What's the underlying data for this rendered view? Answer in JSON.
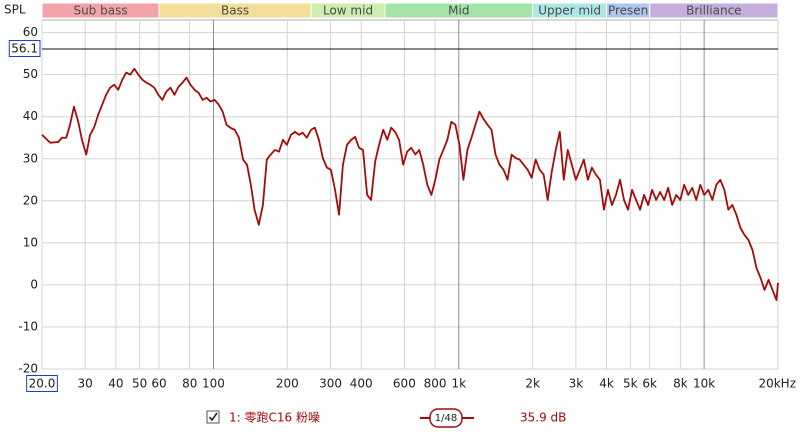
{
  "chart_data": {
    "type": "line",
    "ylabel": "SPL",
    "xscale": "log",
    "grid": true,
    "xlim": [
      20,
      20000
    ],
    "ylim": [
      -20,
      63
    ],
    "xticks": [
      {
        "value": 20,
        "label": "20.0"
      },
      30,
      40,
      50,
      60,
      80,
      100,
      200,
      300,
      400,
      600,
      800,
      {
        "value": 1000,
        "label": "1k"
      },
      {
        "value": 2000,
        "label": "2k"
      },
      {
        "value": 3000,
        "label": "3k"
      },
      {
        "value": 4000,
        "label": "4k"
      },
      {
        "value": 5000,
        "label": "5k"
      },
      {
        "value": 6000,
        "label": "6k"
      },
      {
        "value": 8000,
        "label": "8k"
      },
      {
        "value": 10000,
        "label": "10k"
      },
      {
        "value": 20000,
        "label": "20kHz"
      }
    ],
    "yticks": [
      -20,
      -10,
      0,
      10,
      20,
      30,
      40,
      50,
      60
    ],
    "cursor": 56.1,
    "bands": [
      {
        "label": "Sub bass",
        "start": 20,
        "end": 60,
        "color": "#f2a4ab"
      },
      {
        "label": "Bass",
        "start": 60,
        "end": 250,
        "color": "#f2e09a"
      },
      {
        "label": "Low mid",
        "start": 250,
        "end": 500,
        "color": "#cdeeb0"
      },
      {
        "label": "Mid",
        "start": 500,
        "end": 2000,
        "color": "#a6e3a8"
      },
      {
        "label": "Upper mid",
        "start": 2000,
        "end": 4000,
        "color": "#ade7e6"
      },
      {
        "label": "Presen",
        "start": 4000,
        "end": 6000,
        "color": "#b0c6ee"
      },
      {
        "label": "Brilliance",
        "start": 6000,
        "end": 20000,
        "color": "#c4aedc"
      }
    ],
    "x": [
      20,
      21.6,
      23.3,
      24.1,
      25.1,
      26.0,
      27.0,
      28.1,
      29.1,
      30.3,
      31.4,
      32.6,
      33.9,
      35.2,
      36.5,
      37.9,
      39.4,
      40.9,
      42.5,
      44.1,
      45.8,
      47.6,
      49.4,
      51.3,
      53.3,
      55.3,
      57.4,
      59.6,
      61.9,
      64.3,
      66.8,
      69.3,
      72.0,
      74.8,
      77.6,
      80.6,
      83.7,
      86.9,
      90.3,
      93.7,
      97.3,
      101,
      105,
      109,
      113,
      117,
      122,
      127,
      132,
      137,
      142,
      147,
      153,
      159,
      165,
      171,
      178,
      185,
      192,
      199,
      207,
      215,
      223,
      231,
      240,
      250,
      259,
      269,
      279,
      290,
      301,
      313,
      325,
      337,
      350,
      364,
      378,
      392,
      407,
      423,
      439,
      456,
      473,
      492,
      511,
      530,
      550,
      571,
      593,
      616,
      640,
      665,
      690,
      716,
      744,
      773,
      802,
      833,
      865,
      898,
      932,
      968,
      1006,
      1044,
      1084,
      1126,
      1169,
      1214,
      1260,
      1309,
      1359,
      1411,
      1465,
      1521,
      1580,
      1641,
      1704,
      1769,
      1837,
      1908,
      1981,
      2057,
      2136,
      2218,
      2303,
      2392,
      2484,
      2579,
      2678,
      2781,
      2888,
      2999,
      3114,
      3233,
      3358,
      3487,
      3621,
      3760,
      3904,
      4054,
      4210,
      4372,
      4540,
      4714,
      4895,
      5083,
      5278,
      5481,
      5691,
      5910,
      6137,
      6372,
      6617,
      6871,
      7135,
      7409,
      7693,
      7989,
      8295,
      8614,
      8945,
      9288,
      9645,
      10010,
      10400,
      10800,
      11210,
      11640,
      12090,
      12550,
      13030,
      13530,
      14050,
      14590,
      15150,
      15740,
      16340,
      16970,
      17620,
      18300,
      19000,
      19720,
      20000
    ],
    "series": [
      {
        "name": "1: 零跑C16 粉噪",
        "color": "#a50b0b",
        "values": [
          35.7,
          33.8,
          34,
          35,
          35,
          38,
          42.4,
          38.8,
          34.5,
          31,
          35.7,
          37.4,
          40.5,
          42.9,
          45.2,
          46.9,
          47.6,
          46.4,
          48.8,
          50.5,
          50,
          51.4,
          50,
          48.8,
          48.1,
          47.6,
          46.9,
          45.2,
          44,
          46,
          46.9,
          45.2,
          47.1,
          48.1,
          49.3,
          47.6,
          46.4,
          45.7,
          44,
          44.5,
          43.6,
          44,
          42.9,
          41.2,
          38.1,
          37.4,
          36.9,
          35,
          29.8,
          28.6,
          23.8,
          17.9,
          14.3,
          19,
          29.8,
          31,
          32.1,
          31.7,
          34.5,
          33.3,
          35.7,
          36.4,
          35.7,
          36.2,
          35,
          36.9,
          37.4,
          34.5,
          30.2,
          27.9,
          27.4,
          22.6,
          16.7,
          28.6,
          33.3,
          34.5,
          35.2,
          32.6,
          32.1,
          21.4,
          20.2,
          29.3,
          33.3,
          36.9,
          34.5,
          37.4,
          36.4,
          34.5,
          28.6,
          31.7,
          32.6,
          31,
          32.1,
          28.6,
          23.8,
          21.4,
          25,
          29.8,
          32.1,
          34.5,
          38.8,
          38.1,
          33.3,
          25,
          32.1,
          35,
          38.1,
          41.2,
          39.5,
          38.1,
          36.9,
          31,
          28.6,
          27.4,
          25,
          31,
          30.2,
          29.8,
          28.6,
          27.4,
          25.5,
          29.8,
          27.4,
          26.2,
          20.2,
          26.9,
          32.1,
          36.4,
          25,
          32.1,
          28.6,
          25,
          27.4,
          29.8,
          25,
          27.9,
          26.2,
          25,
          17.9,
          22.6,
          19,
          21.4,
          25,
          20.2,
          17.9,
          22.6,
          20.2,
          17.9,
          21.4,
          19,
          22.6,
          20.2,
          22.1,
          20.2,
          23.1,
          19,
          21.4,
          20.2,
          23.8,
          21.4,
          23.1,
          20.2,
          23.8,
          21.4,
          22.6,
          20.2,
          23.8,
          25,
          22.6,
          17.9,
          19,
          16.7,
          13.6,
          11.9,
          10.7,
          8.3,
          4,
          1.7,
          -1.2,
          1.2,
          -1.2,
          -3.6,
          0.5
        ]
      }
    ],
    "smoothing": "1/48",
    "level": "35.9 dB"
  }
}
